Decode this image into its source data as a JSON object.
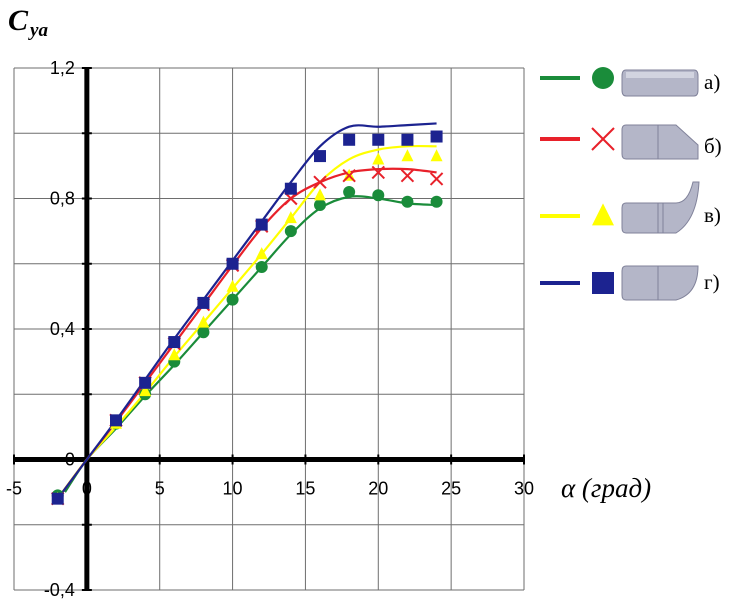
{
  "chart_data": {
    "type": "line",
    "ylabel_main": "C",
    "ylabel_sub": "ya",
    "xlabel": "α (град)",
    "xlim": [
      -5,
      30
    ],
    "ylim": [
      -0.4,
      1.2
    ],
    "xticks": [
      "-5",
      "0",
      "5",
      "10",
      "15",
      "20",
      "25",
      "30"
    ],
    "yticks": [
      "-0,4",
      "0",
      "0,4",
      "0,8",
      "1,2"
    ],
    "grid": true,
    "legend_position": "right",
    "series": [
      {
        "name": "а)",
        "color": "#1a8c3a",
        "marker": "circle",
        "line": [
          [
            -1.5,
            -0.1
          ],
          [
            0,
            0
          ],
          [
            2,
            0.095
          ],
          [
            4,
            0.195
          ],
          [
            6,
            0.29
          ],
          [
            8,
            0.39
          ],
          [
            10,
            0.49
          ],
          [
            12,
            0.59
          ],
          [
            14,
            0.69
          ],
          [
            16,
            0.77
          ],
          [
            18,
            0.805
          ],
          [
            20,
            0.8
          ],
          [
            22,
            0.785
          ],
          [
            24,
            0.78
          ]
        ],
        "points": [
          [
            -2,
            -0.11
          ],
          [
            2,
            0.11
          ],
          [
            4,
            0.2
          ],
          [
            6,
            0.3
          ],
          [
            8,
            0.39
          ],
          [
            10,
            0.49
          ],
          [
            12,
            0.59
          ],
          [
            14,
            0.7
          ],
          [
            16,
            0.78
          ],
          [
            18,
            0.82
          ],
          [
            20,
            0.81
          ],
          [
            22,
            0.79
          ],
          [
            24,
            0.79
          ]
        ]
      },
      {
        "name": "б)",
        "color": "#e8212a",
        "marker": "cross",
        "line": [
          [
            -2,
            -0.12
          ],
          [
            0,
            0
          ],
          [
            2,
            0.115
          ],
          [
            4,
            0.235
          ],
          [
            6,
            0.355
          ],
          [
            8,
            0.475
          ],
          [
            10,
            0.595
          ],
          [
            12,
            0.71
          ],
          [
            14,
            0.8
          ],
          [
            16,
            0.85
          ],
          [
            18,
            0.88
          ],
          [
            20,
            0.89
          ],
          [
            22,
            0.89
          ],
          [
            24,
            0.88
          ]
        ],
        "points": [
          [
            -2,
            -0.12
          ],
          [
            2,
            0.12
          ],
          [
            4,
            0.235
          ],
          [
            6,
            0.355
          ],
          [
            8,
            0.475
          ],
          [
            10,
            0.595
          ],
          [
            12,
            0.715
          ],
          [
            14,
            0.8
          ],
          [
            16,
            0.85
          ],
          [
            18,
            0.87
          ],
          [
            20,
            0.88
          ],
          [
            22,
            0.87
          ],
          [
            24,
            0.86
          ]
        ]
      },
      {
        "name": "в)",
        "color": "#ffff00",
        "marker": "triangle",
        "line": [
          [
            -2,
            -0.12
          ],
          [
            0,
            0
          ],
          [
            2,
            0.1
          ],
          [
            4,
            0.205
          ],
          [
            6,
            0.315
          ],
          [
            8,
            0.42
          ],
          [
            10,
            0.525
          ],
          [
            12,
            0.63
          ],
          [
            14,
            0.74
          ],
          [
            16,
            0.85
          ],
          [
            18,
            0.92
          ],
          [
            20,
            0.95
          ],
          [
            22,
            0.96
          ],
          [
            24,
            0.96
          ]
        ],
        "points": [
          [
            -2,
            -0.12
          ],
          [
            2,
            0.11
          ],
          [
            4,
            0.21
          ],
          [
            6,
            0.32
          ],
          [
            8,
            0.42
          ],
          [
            10,
            0.53
          ],
          [
            12,
            0.63
          ],
          [
            14,
            0.74
          ],
          [
            16,
            0.81
          ],
          [
            18,
            0.87
          ],
          [
            20,
            0.92
          ],
          [
            22,
            0.93
          ],
          [
            24,
            0.93
          ]
        ]
      },
      {
        "name": "г)",
        "color": "#1c2390",
        "marker": "square",
        "line": [
          [
            -2,
            -0.12
          ],
          [
            0,
            0
          ],
          [
            2,
            0.12
          ],
          [
            4,
            0.245
          ],
          [
            6,
            0.37
          ],
          [
            8,
            0.49
          ],
          [
            10,
            0.61
          ],
          [
            12,
            0.73
          ],
          [
            14,
            0.85
          ],
          [
            16,
            0.96
          ],
          [
            18,
            1.02
          ],
          [
            20,
            1.02
          ],
          [
            22,
            1.025
          ],
          [
            24,
            1.03
          ]
        ],
        "points": [
          [
            -2,
            -0.12
          ],
          [
            2,
            0.12
          ],
          [
            4,
            0.235
          ],
          [
            6,
            0.36
          ],
          [
            8,
            0.48
          ],
          [
            10,
            0.6
          ],
          [
            12,
            0.72
          ],
          [
            14,
            0.83
          ],
          [
            16,
            0.93
          ],
          [
            18,
            0.98
          ],
          [
            20,
            0.98
          ],
          [
            22,
            0.98
          ],
          [
            24,
            0.99
          ]
        ]
      }
    ]
  }
}
